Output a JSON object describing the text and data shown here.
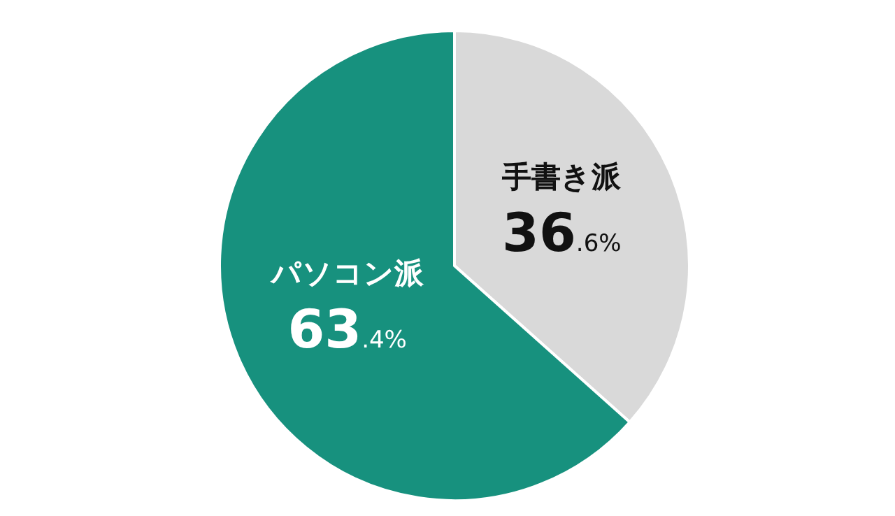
{
  "chart_data": {
    "type": "pie",
    "categories": [
      "手書き派",
      "パソコン派"
    ],
    "values": [
      36.6,
      63.4
    ],
    "colors": [
      "#d9d9d9",
      "#17917e"
    ],
    "value_labels": [
      "36.6%",
      "63.4%"
    ],
    "legend": false
  }
}
